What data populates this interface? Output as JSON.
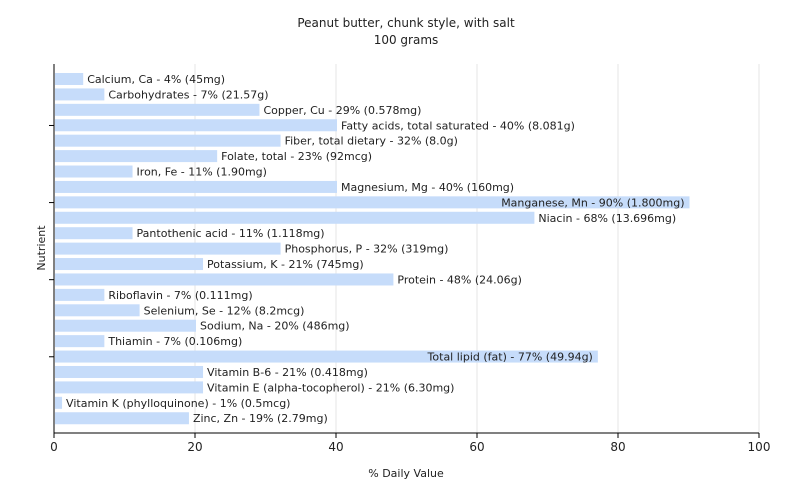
{
  "chart_data": {
    "type": "bar",
    "orientation": "horizontal",
    "title": "Peanut butter, chunk style, with salt",
    "subtitle": "100 grams",
    "xlabel": "% Daily Value",
    "ylabel": "Nutrient",
    "xlim": [
      0,
      100
    ],
    "xticks": [
      "0",
      "20",
      "40",
      "60",
      "80",
      "100"
    ],
    "grid": true,
    "bar_color": "#c6dcfa",
    "categories": [
      "Calcium, Ca",
      "Carbohydrates",
      "Copper, Cu",
      "Fatty acids, total saturated",
      "Fiber, total dietary",
      "Folate, total",
      "Iron, Fe",
      "Magnesium, Mg",
      "Manganese, Mn",
      "Niacin",
      "Pantothenic acid",
      "Phosphorus, P",
      "Potassium, K",
      "Protein",
      "Riboflavin",
      "Selenium, Se",
      "Sodium, Na",
      "Thiamin",
      "Total lipid (fat)",
      "Vitamin B-6",
      "Vitamin E (alpha-tocopherol)",
      "Vitamin K (phylloquinone)",
      "Zinc, Zn"
    ],
    "values": [
      4,
      7,
      29,
      40,
      32,
      23,
      11,
      40,
      90,
      68,
      11,
      32,
      21,
      48,
      7,
      12,
      20,
      7,
      77,
      21,
      21,
      1,
      19
    ],
    "labels": [
      "Calcium, Ca - 4% (45mg)",
      "Carbohydrates - 7% (21.57g)",
      "Copper, Cu - 29% (0.578mg)",
      "Fatty acids, total saturated - 40% (8.081g)",
      "Fiber, total dietary - 32% (8.0g)",
      "Folate, total - 23% (92mcg)",
      "Iron, Fe - 11% (1.90mg)",
      "Magnesium, Mg - 40% (160mg)",
      "Manganese, Mn - 90% (1.800mg)",
      "Niacin - 68% (13.696mg)",
      "Pantothenic acid - 11% (1.118mg)",
      "Phosphorus, P - 32% (319mg)",
      "Potassium, K - 21% (745mg)",
      "Protein - 48% (24.06g)",
      "Riboflavin - 7% (0.111mg)",
      "Selenium, Se - 12% (8.2mcg)",
      "Sodium, Na - 20% (486mg)",
      "Thiamin - 7% (0.106mg)",
      "Total lipid (fat) - 77% (49.94g)",
      "Vitamin B-6 - 21% (0.418mg)",
      "Vitamin E (alpha-tocopherol) - 21% (6.30mg)",
      "Vitamin K (phylloquinone) - 1% (0.5mcg)",
      "Zinc, Zn - 19% (2.79mg)"
    ]
  }
}
